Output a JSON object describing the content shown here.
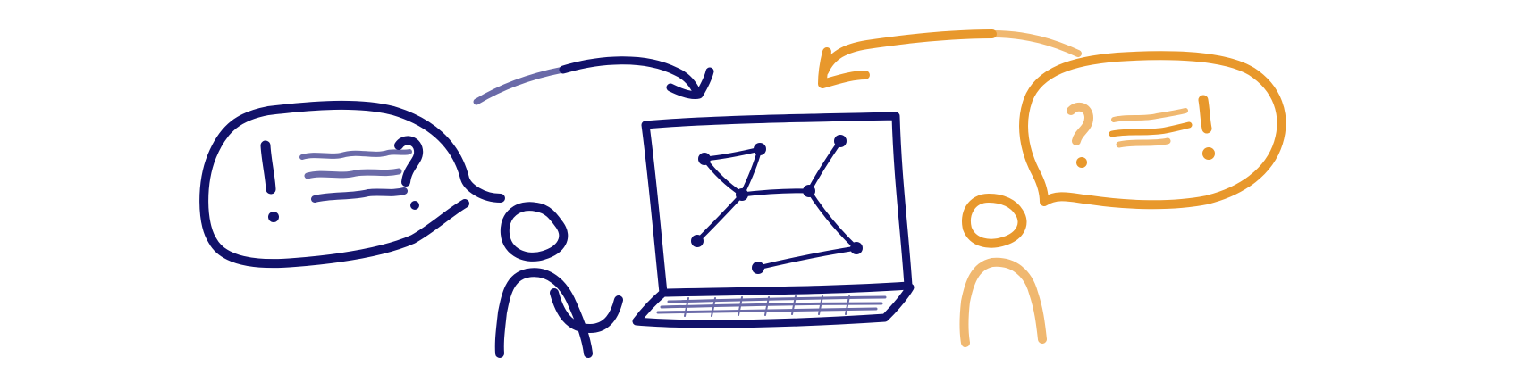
{
  "colors": {
    "navy": "#11116a",
    "navy_soft": "#6a6aa8",
    "orange": "#e8982c",
    "orange_soft": "#f0b870",
    "background": "#ffffff"
  },
  "icons": {
    "left_person": "person-icon",
    "right_person": "person-icon",
    "laptop": "laptop-icon",
    "network_graph": "network-graph-icon",
    "left_bubble": "speech-bubble-icon",
    "right_bubble": "speech-bubble-icon",
    "left_arrow": "curved-arrow-icon",
    "right_arrow": "curved-arrow-icon"
  }
}
